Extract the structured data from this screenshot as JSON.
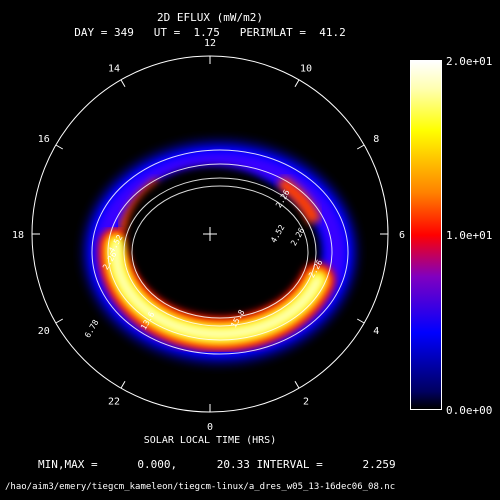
{
  "header": {
    "title": "2D EFLUX (mW/m2)",
    "subtitle": "DAY = 349   UT =  1.75   PERIMLAT =  41.2"
  },
  "chart_data": {
    "type": "heatmap",
    "projection": "polar (magnetic local time dial)",
    "title": "2D EFLUX (mW/m2)",
    "xlabel": "SOLAR LOCAL TIME (HRS)",
    "ylabel": "",
    "hour_labels": [
      "0",
      "2",
      "4",
      "6",
      "8",
      "10",
      "12",
      "14",
      "16",
      "18",
      "20",
      "22"
    ],
    "colorbar": {
      "min": 0.0,
      "max": 20.0,
      "ticks": [
        "0.0e+00",
        "1.0e+01",
        "2.0e+01"
      ],
      "colors": [
        "#000000",
        "#0000ff",
        "#8000c0",
        "#ff0000",
        "#ff8000",
        "#ffff00",
        "#ffffff"
      ]
    },
    "contour_labels": [
      "4.52",
      "2.26",
      "6.78",
      "2.26",
      "2.26",
      "13.6",
      "15.8",
      "2.26",
      "4.52"
    ],
    "data_min": 0.0,
    "data_max": 20.33,
    "contour_interval": 2.259,
    "grid": false
  },
  "footer": {
    "minmax_line": "MIN,MAX =      0.000,      20.33 INTERVAL =      2.259",
    "file_path": "/hao/aim3/emery/tiegcm_kameleon/tiegcm-linux/a_dres_w05_13-16dec06_08.nc"
  }
}
